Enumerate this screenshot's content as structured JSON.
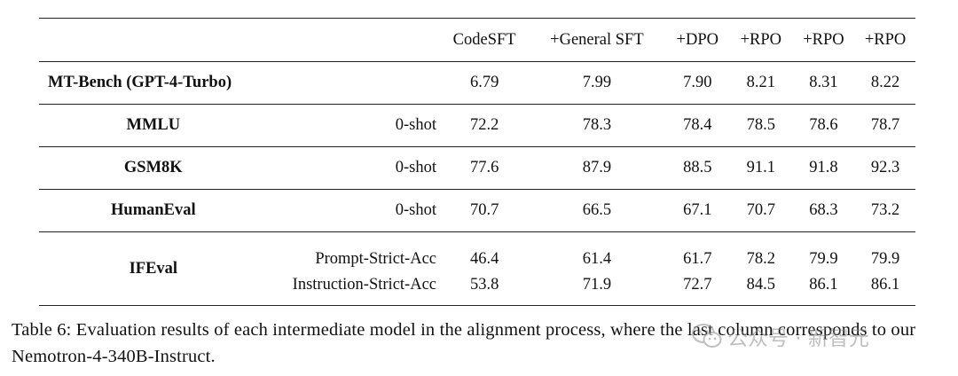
{
  "table": {
    "headers": [
      "",
      "",
      "CodeSFT",
      "+General SFT",
      "+DPO",
      "+RPO",
      "+RPO",
      "+RPO"
    ],
    "rows": [
      {
        "dataset": "MT-Bench (GPT-4-Turbo)",
        "setting": "",
        "values": [
          "6.79",
          "7.99",
          "7.90",
          "8.21",
          "8.31",
          "8.22"
        ]
      },
      {
        "dataset": "MMLU",
        "setting": "0-shot",
        "values": [
          "72.2",
          "78.3",
          "78.4",
          "78.5",
          "78.6",
          "78.7"
        ]
      },
      {
        "dataset": "GSM8K",
        "setting": "0-shot",
        "values": [
          "77.6",
          "87.9",
          "88.5",
          "91.1",
          "91.8",
          "92.3"
        ]
      },
      {
        "dataset": "HumanEval",
        "setting": "0-shot",
        "values": [
          "70.7",
          "66.5",
          "67.1",
          "70.7",
          "68.3",
          "73.2"
        ]
      }
    ],
    "ifeval": {
      "dataset": "IFEval",
      "rows": [
        {
          "setting": "Prompt-Strict-Acc",
          "values": [
            "46.4",
            "61.4",
            "61.7",
            "78.2",
            "79.9",
            "79.9"
          ]
        },
        {
          "setting": "Instruction-Strict-Acc",
          "values": [
            "53.8",
            "71.9",
            "72.7",
            "84.5",
            "86.1",
            "86.1"
          ]
        }
      ]
    }
  },
  "caption": "Table 6: Evaluation results of each intermediate model in the alignment process, where the last column corresponds to our Nemotron-4-340B-Instruct.",
  "watermark": {
    "text": "公众号 · 新智元",
    "icon": "wechat-icon"
  }
}
